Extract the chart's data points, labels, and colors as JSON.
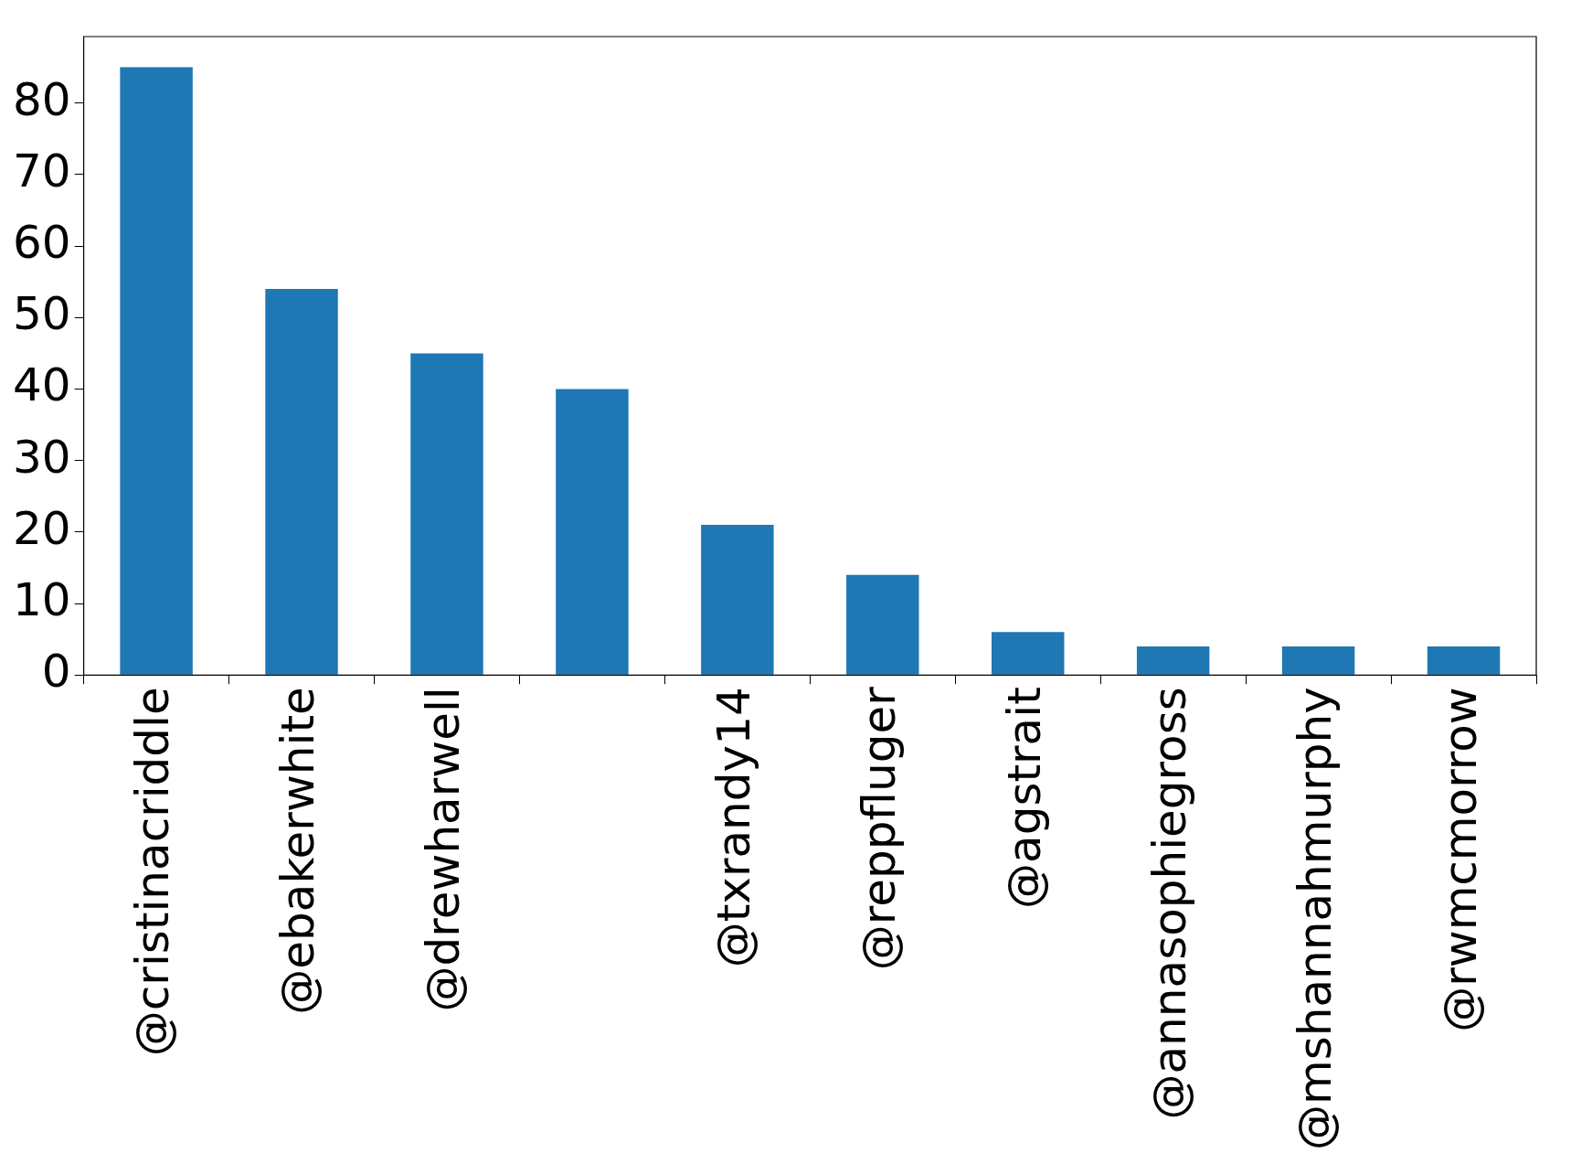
{
  "chart_data": {
    "type": "bar",
    "categories": [
      "@cristinacriddle",
      "@ebakerwhite",
      "@drewharwell",
      null,
      "@txrandy14",
      "@reppfluger",
      "@agstrait",
      "@annasophiegross",
      "@mshannahmurphy",
      "@rwmcmorrow"
    ],
    "values": [
      85,
      54,
      45,
      40,
      21,
      14,
      6,
      4,
      4,
      4
    ],
    "color": "#1f77b4",
    "ylim": [
      0,
      89.3
    ],
    "yticks": [
      0,
      10,
      20,
      30,
      40,
      50,
      60,
      70,
      80
    ],
    "grid": false,
    "legend": false
  }
}
